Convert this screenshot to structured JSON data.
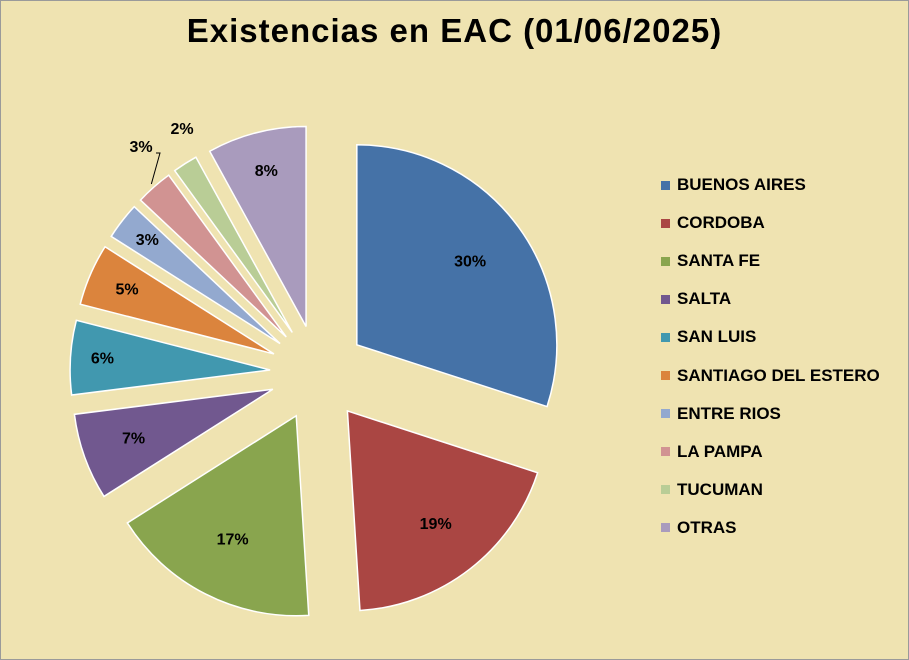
{
  "chart_data": {
    "type": "pie",
    "title": "Existencias en EAC (01/06/2025)",
    "slices": [
      {
        "name": "BUENOS AIRES",
        "value": 30,
        "label": "30%",
        "color": "#4572a7"
      },
      {
        "name": "CORDOBA",
        "value": 19,
        "label": "19%",
        "color": "#aa4643"
      },
      {
        "name": "SANTA FE",
        "value": 17,
        "label": "17%",
        "color": "#89a54e"
      },
      {
        "name": "SALTA",
        "value": 7,
        "label": "7%",
        "color": "#71588f"
      },
      {
        "name": "SAN LUIS",
        "value": 6,
        "label": "6%",
        "color": "#4198af"
      },
      {
        "name": "SANTIAGO DEL ESTERO",
        "value": 5,
        "label": "5%",
        "color": "#db843d"
      },
      {
        "name": "ENTRE RIOS",
        "value": 3,
        "label": "3%",
        "color": "#93a9cf"
      },
      {
        "name": "LA PAMPA",
        "value": 3,
        "label": "3%",
        "color": "#d19392"
      },
      {
        "name": "TUCUMAN",
        "value": 2,
        "label": "2%",
        "color": "#b9cd96"
      },
      {
        "name": "OTRAS",
        "value": 8,
        "label": "8%",
        "color": "#a99bbd"
      }
    ],
    "legend_position": "right",
    "exploded": true
  }
}
